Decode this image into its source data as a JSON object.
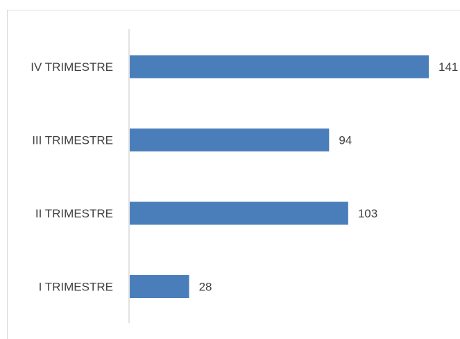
{
  "chart_data": {
    "type": "bar",
    "orientation": "horizontal",
    "title": "",
    "categories": [
      "IV TRIMESTRE",
      "III TRIMESTRE",
      "II TRIMESTRE",
      "I TRIMESTRE"
    ],
    "values": [
      141,
      94,
      103,
      28
    ],
    "bar_color": "#4a7ebb",
    "xlabel": "",
    "ylabel": "",
    "grid": false,
    "legend": "none"
  }
}
